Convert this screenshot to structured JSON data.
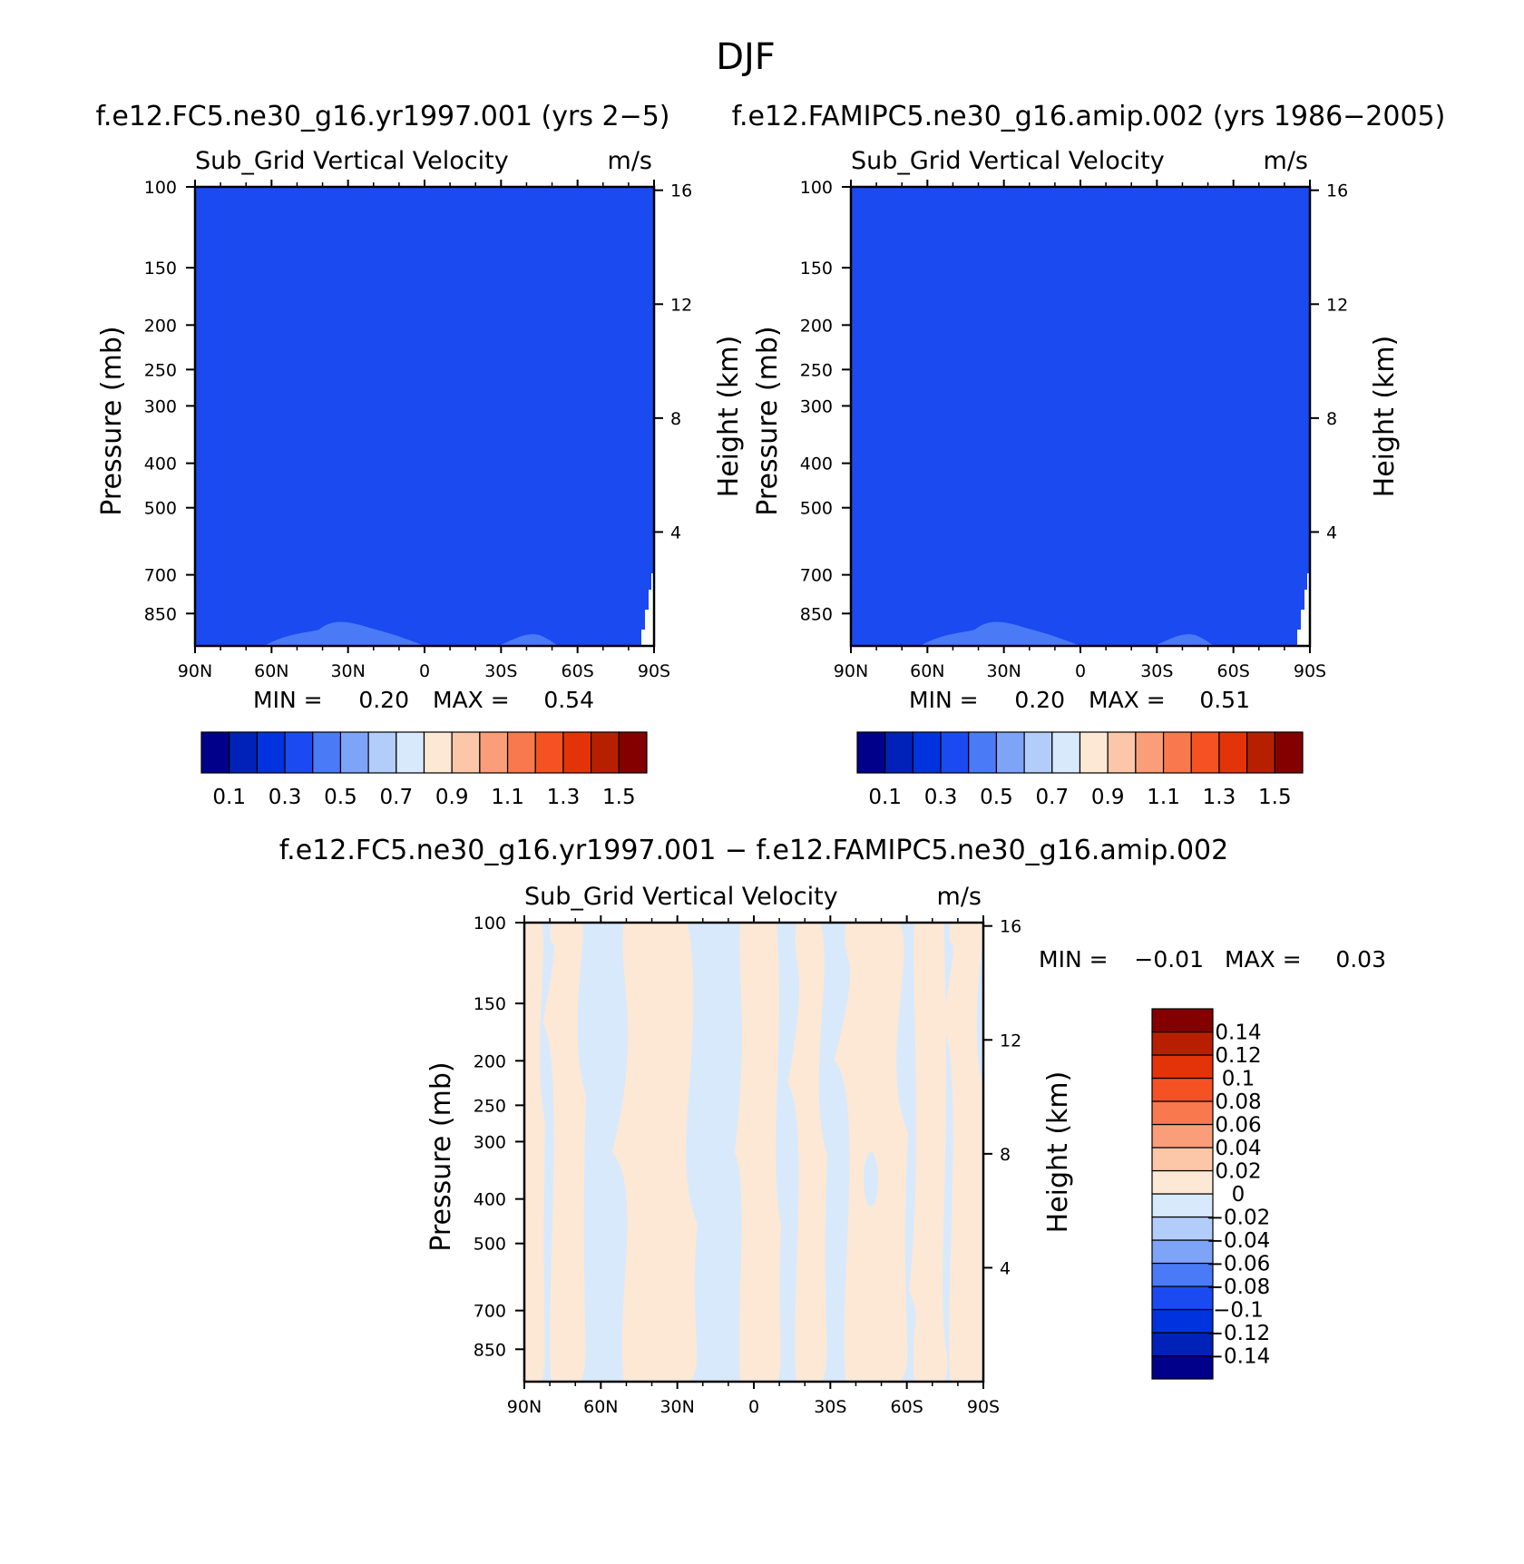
{
  "page_title": "DJF",
  "chart_data": [
    {
      "type": "heatmap",
      "title": "f.e12.FC5.ne30_g16.yr1997.001 (yrs 2-5)",
      "variable": "Sub_Grid Vertical Velocity",
      "units": "m/s",
      "ylabel": "Pressure (mb)",
      "y2label": "Height (km)",
      "x_ticks": [
        "90N",
        "60N",
        "30N",
        "0",
        "30S",
        "60S",
        "90S"
      ],
      "y_ticks": [
        100,
        150,
        200,
        250,
        300,
        400,
        500,
        700,
        850
      ],
      "y2_ticks": [
        16,
        12,
        8,
        4
      ],
      "ylim": [
        1000,
        100
      ],
      "y_scale": "log",
      "dominant_value": 0.33,
      "min_text": "MIN =",
      "min_value": "0.20",
      "max_text": "MAX =",
      "max_value": "0.54",
      "colorbar": {
        "orientation": "horizontal",
        "colors": [
          "#00008b",
          "#0022b8",
          "#0033dd",
          "#1a4af0",
          "#4a7af5",
          "#7ea4f7",
          "#b3cdfb",
          "#d8e9fc",
          "#fde8d6",
          "#fcc6a8",
          "#fa9e7a",
          "#f7794d",
          "#f55224",
          "#e33309",
          "#b62000",
          "#840000"
        ],
        "labels": [
          "0.1",
          "0.3",
          "0.5",
          "0.7",
          "0.9",
          "1.1",
          "1.3",
          "1.5"
        ]
      }
    },
    {
      "type": "heatmap",
      "title": "f.e12.FAMIPC5.ne30_g16.amip.002 (yrs 1986-2005)",
      "variable": "Sub_Grid Vertical Velocity",
      "units": "m/s",
      "ylabel": "Pressure (mb)",
      "y2label": "Height (km)",
      "x_ticks": [
        "90N",
        "60N",
        "30N",
        "0",
        "30S",
        "60S",
        "90S"
      ],
      "y_ticks": [
        100,
        150,
        200,
        250,
        300,
        400,
        500,
        700,
        850
      ],
      "y2_ticks": [
        16,
        12,
        8,
        4
      ],
      "ylim": [
        1000,
        100
      ],
      "y_scale": "log",
      "dominant_value": 0.33,
      "min_text": "MIN =",
      "min_value": "0.20",
      "max_text": "MAX =",
      "max_value": "0.51",
      "colorbar": {
        "orientation": "horizontal",
        "colors": [
          "#00008b",
          "#0022b8",
          "#0033dd",
          "#1a4af0",
          "#4a7af5",
          "#7ea4f7",
          "#b3cdfb",
          "#d8e9fc",
          "#fde8d6",
          "#fcc6a8",
          "#fa9e7a",
          "#f7794d",
          "#f55224",
          "#e33309",
          "#b62000",
          "#840000"
        ],
        "labels": [
          "0.1",
          "0.3",
          "0.5",
          "0.7",
          "0.9",
          "1.1",
          "1.3",
          "1.5"
        ]
      }
    },
    {
      "type": "heatmap",
      "title": "f.e12.FC5.ne30_g16.yr1997.001 - f.e12.FAMIPC5.ne30_g16.amip.002",
      "variable": "Sub_Grid Vertical Velocity",
      "units": "m/s",
      "ylabel": "Pressure (mb)",
      "y2label": "Height (km)",
      "x_ticks": [
        "90N",
        "60N",
        "30N",
        "0",
        "30S",
        "60S",
        "90S"
      ],
      "y_ticks": [
        100,
        150,
        200,
        250,
        300,
        400,
        500,
        700,
        850
      ],
      "y2_ticks": [
        16,
        12,
        8,
        4
      ],
      "ylim": [
        1000,
        100
      ],
      "y_scale": "log",
      "min_text": "MIN =",
      "min_value": "-0.01",
      "max_text": "MAX =",
      "max_value": "0.03",
      "field_values": [
        -0.01,
        0.01
      ],
      "colorbar": {
        "orientation": "vertical",
        "colors": [
          "#00008b",
          "#0022b8",
          "#0033dd",
          "#1a4af0",
          "#4a7af5",
          "#7ea4f7",
          "#b3cdfb",
          "#d8e9fc",
          "#fde8d6",
          "#fcc6a8",
          "#fa9e7a",
          "#f7794d",
          "#f55224",
          "#e33309",
          "#b62000",
          "#840000"
        ],
        "labels": [
          "-0.14",
          "-0.12",
          "-0.1",
          "-0.08",
          "-0.06",
          "-0.04",
          "-0.02",
          "0",
          "0.02",
          "0.04",
          "0.06",
          "0.08",
          "0.1",
          "0.12",
          "0.14"
        ]
      }
    }
  ]
}
